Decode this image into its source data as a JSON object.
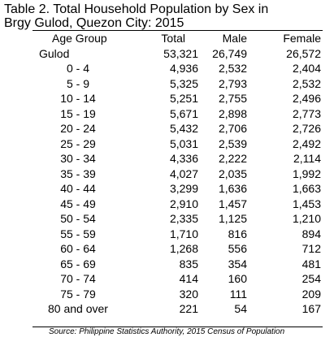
{
  "title": {
    "line1": "Table 2. Total Household Population by Sex in",
    "line2": "Brgy Gulod, Quezon City: 2015"
  },
  "table": {
    "headers": [
      "Age Group",
      "Total",
      "Male",
      "Female"
    ],
    "rows": [
      {
        "age": "Gulod",
        "total": "53,321",
        "male": "26,749",
        "female": "26,572"
      },
      {
        "age": "0 - 4",
        "total": "4,936",
        "male": "2,532",
        "female": "2,404"
      },
      {
        "age": "5 - 9",
        "total": "5,325",
        "male": "2,793",
        "female": "2,532"
      },
      {
        "age": "10 - 14",
        "total": "5,251",
        "male": "2,755",
        "female": "2,496"
      },
      {
        "age": "15 - 19",
        "total": "5,671",
        "male": "2,898",
        "female": "2,773"
      },
      {
        "age": "20 - 24",
        "total": "5,432",
        "male": "2,706",
        "female": "2,726"
      },
      {
        "age": "25 - 29",
        "total": "5,031",
        "male": "2,539",
        "female": "2,492"
      },
      {
        "age": "30 - 34",
        "total": "4,336",
        "male": "2,222",
        "female": "2,114"
      },
      {
        "age": "35 - 39",
        "total": "4,027",
        "male": "2,035",
        "female": "1,992"
      },
      {
        "age": "40 - 44",
        "total": "3,299",
        "male": "1,636",
        "female": "1,663"
      },
      {
        "age": "45 - 49",
        "total": "2,910",
        "male": "1,457",
        "female": "1,453"
      },
      {
        "age": "50 - 54",
        "total": "2,335",
        "male": "1,125",
        "female": "1,210"
      },
      {
        "age": "55 - 59",
        "total": "1,710",
        "male": "816",
        "female": "894"
      },
      {
        "age": "60 - 64",
        "total": "1,268",
        "male": "556",
        "female": "712"
      },
      {
        "age": "65 - 69",
        "total": "835",
        "male": "354",
        "female": "481"
      },
      {
        "age": "70 - 74",
        "total": "414",
        "male": "160",
        "female": "254"
      },
      {
        "age": "75 - 79",
        "total": "320",
        "male": "111",
        "female": "209"
      },
      {
        "age": "80 and over",
        "total": "221",
        "male": "54",
        "female": "167"
      }
    ]
  },
  "source": "Source: Philippine Statistics Authority, 2015 Census of Population"
}
